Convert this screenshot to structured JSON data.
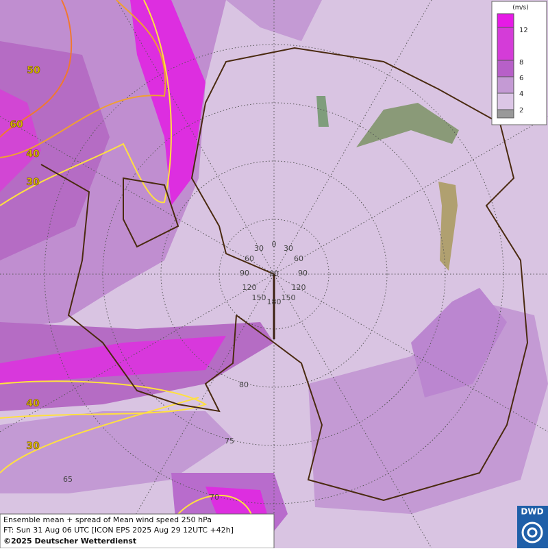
{
  "legend": {
    "unit": "(m/s)",
    "levels": [
      12,
      8,
      6,
      4,
      2
    ]
  },
  "contour_labels": [
    50,
    60,
    40,
    30,
    40,
    30
  ],
  "grid_labels": {
    "meridians": [
      0,
      30,
      30,
      60,
      60,
      90,
      90,
      120,
      120,
      150,
      150,
      180
    ],
    "latitudes": [
      80,
      80,
      75,
      70,
      65
    ]
  },
  "footer": {
    "line1": "Ensemble mean + spread of Mean wind speed 250 hPa",
    "line2": "FT: Sun 31 Aug 06 UTC [ICON EPS 2025 Aug 29 12UTC +42h]",
    "copyright": "©2025 Deutscher Wetterdienst"
  },
  "logo": "DWD"
}
